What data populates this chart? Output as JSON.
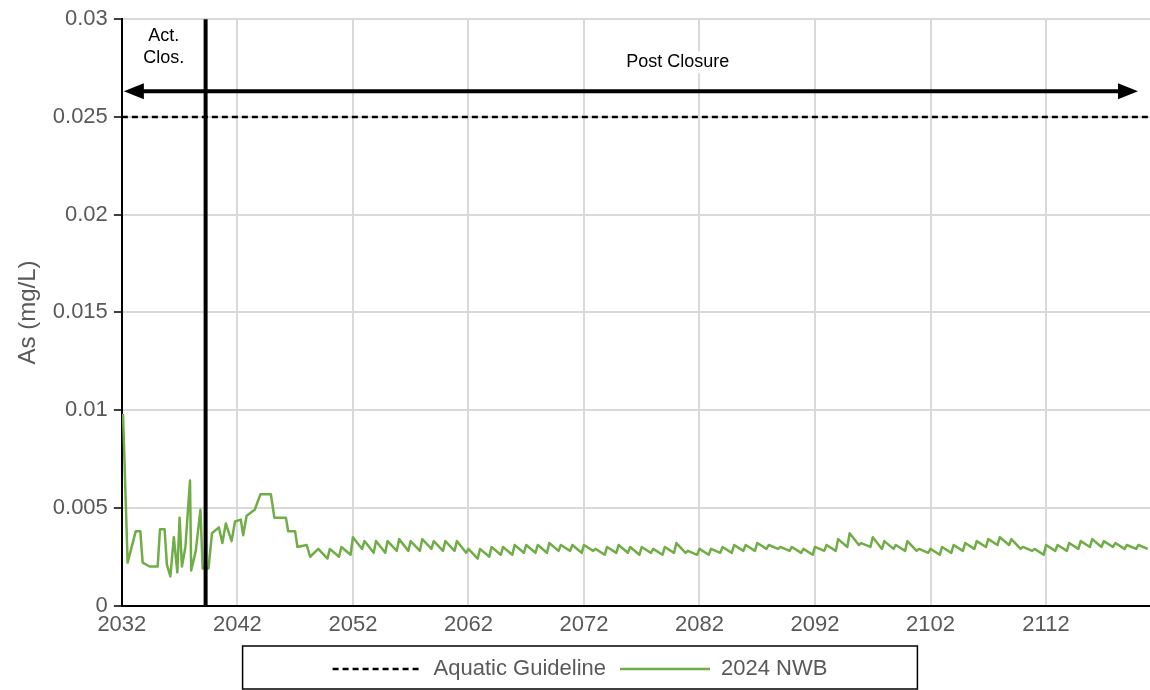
{
  "chart_data": {
    "type": "line",
    "ylabel": "As (mg/L)",
    "xlim": [
      2032,
      2121
    ],
    "xticks": [
      2032,
      2042,
      2052,
      2062,
      2072,
      2082,
      2092,
      2102,
      2112
    ],
    "ylim": [
      0,
      0.03
    ],
    "yticks": [
      0,
      0.005,
      0.01,
      0.015,
      0.02,
      0.025,
      0.03
    ],
    "grid": true,
    "legend": "bottom",
    "marker": "none",
    "ref_lines": [
      {
        "axis": "x",
        "value": 2039.25,
        "color": "#000000"
      }
    ],
    "annotations": [
      "Act. Clos.",
      "Post Closure"
    ],
    "series": [
      {
        "name": "Aquatic Guideline",
        "color": "#000000",
        "line_style": "dashed",
        "x": [
          2032,
          2121
        ],
        "values": [
          0.025,
          0.025
        ]
      },
      {
        "name": "2024 NWB",
        "color": "#70ad47",
        "line_style": "solid",
        "x": [
          2032.1,
          2032.5,
          2033.2,
          2033.6,
          2033.8,
          2034.4,
          2035.1,
          2035.3,
          2035.7,
          2035.9,
          2036.2,
          2036.5,
          2036.8,
          2037.0,
          2037.2,
          2037.5,
          2037.9,
          2038.0,
          2038.4,
          2038.8,
          2039.0,
          2039.5,
          2039.8,
          2040.4,
          2040.7,
          2041.0,
          2041.5,
          2041.8,
          2042.3,
          2042.5,
          2042.8,
          2043.5,
          2044.0,
          2044.9,
          2045.2,
          2046.2,
          2046.4,
          2047.0,
          2047.2,
          2048.0,
          2048.3,
          2049,
          2049.8,
          2050,
          2050.8,
          2051,
          2051.8,
          2052,
          2052.8,
          2053,
          2053.8,
          2054,
          2054.8,
          2055,
          2055.8,
          2056,
          2056.8,
          2057,
          2057.8,
          2058,
          2058.8,
          2059,
          2059.8,
          2060,
          2060.8,
          2061,
          2061.8,
          2062,
          2062.8,
          2063,
          2063.8,
          2064,
          2064.8,
          2065,
          2065.8,
          2066,
          2066.8,
          2067,
          2067.8,
          2068,
          2068.8,
          2069,
          2069.8,
          2070,
          2070.8,
          2071,
          2071.8,
          2072,
          2072.8,
          2073,
          2073.8,
          2074,
          2074.8,
          2075,
          2075.8,
          2076,
          2076.8,
          2077,
          2077.8,
          2078,
          2078.8,
          2079,
          2079.8,
          2080,
          2080.8,
          2081,
          2081.8,
          2082,
          2082.8,
          2083,
          2083.8,
          2084,
          2084.8,
          2085,
          2085.8,
          2086,
          2086.8,
          2087,
          2087.8,
          2088,
          2088.8,
          2089,
          2089.8,
          2090,
          2090.8,
          2091,
          2091.8,
          2092,
          2092.8,
          2093,
          2093.8,
          2094,
          2094.8,
          2095,
          2095.8,
          2096,
          2096.8,
          2097,
          2097.8,
          2098,
          2098.8,
          2099,
          2099.8,
          2100,
          2100.8,
          2101,
          2101.8,
          2102,
          2102.8,
          2103,
          2103.8,
          2104,
          2104.8,
          2105,
          2105.8,
          2106,
          2106.8,
          2107,
          2107.8,
          2108,
          2108.8,
          2109,
          2109.8,
          2110,
          2110.8,
          2111,
          2111.8,
          2112,
          2112.8,
          2113,
          2113.8,
          2114,
          2114.8,
          2115,
          2115.8,
          2116,
          2116.8,
          2117,
          2117.8,
          2118,
          2118.8,
          2119,
          2119.8,
          2120,
          2120.8
        ],
        "values": [
          0.0098,
          0.0022,
          0.0038,
          0.0038,
          0.0022,
          0.002,
          0.002,
          0.0039,
          0.0039,
          0.0021,
          0.0015,
          0.0035,
          0.0017,
          0.0045,
          0.002,
          0.003,
          0.0064,
          0.0018,
          0.0028,
          0.0049,
          0.0019,
          0.0019,
          0.0037,
          0.004,
          0.0032,
          0.0042,
          0.0033,
          0.0043,
          0.0044,
          0.0036,
          0.0046,
          0.0049,
          0.0057,
          0.0057,
          0.0045,
          0.0045,
          0.0038,
          0.0038,
          0.003,
          0.0031,
          0.0025,
          0.0029,
          0.0024,
          0.0029,
          0.0025,
          0.003,
          0.0026,
          0.0035,
          0.0029,
          0.0033,
          0.0027,
          0.0033,
          0.0027,
          0.0033,
          0.0028,
          0.0034,
          0.0028,
          0.0033,
          0.0028,
          0.0034,
          0.0029,
          0.0033,
          0.0028,
          0.0033,
          0.0028,
          0.0033,
          0.0027,
          0.0029,
          0.0024,
          0.0029,
          0.0025,
          0.003,
          0.0026,
          0.003,
          0.0026,
          0.0031,
          0.0027,
          0.0031,
          0.0027,
          0.0031,
          0.0027,
          0.0032,
          0.0028,
          0.0031,
          0.0028,
          0.0031,
          0.0027,
          0.0031,
          0.0028,
          0.0029,
          0.0026,
          0.003,
          0.0027,
          0.0031,
          0.0027,
          0.003,
          0.0026,
          0.003,
          0.0027,
          0.0029,
          0.0026,
          0.003,
          0.0027,
          0.0032,
          0.0027,
          0.0028,
          0.0026,
          0.0029,
          0.0026,
          0.0029,
          0.0027,
          0.003,
          0.0027,
          0.0031,
          0.0028,
          0.0031,
          0.0028,
          0.0032,
          0.0029,
          0.0031,
          0.0029,
          0.003,
          0.0028,
          0.003,
          0.0027,
          0.0029,
          0.0026,
          0.003,
          0.0028,
          0.0031,
          0.0028,
          0.0034,
          0.003,
          0.0037,
          0.0031,
          0.0032,
          0.003,
          0.0035,
          0.0029,
          0.0033,
          0.0029,
          0.0031,
          0.0028,
          0.0033,
          0.0028,
          0.0029,
          0.0027,
          0.0029,
          0.0026,
          0.003,
          0.0027,
          0.0031,
          0.0028,
          0.0032,
          0.0029,
          0.0033,
          0.003,
          0.0034,
          0.0031,
          0.0035,
          0.0031,
          0.0034,
          0.0029,
          0.003,
          0.0028,
          0.0029,
          0.0026,
          0.0031,
          0.0028,
          0.0031,
          0.0028,
          0.0032,
          0.0029,
          0.0033,
          0.003,
          0.0034,
          0.003,
          0.0033,
          0.003,
          0.0032,
          0.0029,
          0.0031,
          0.0029,
          0.0031,
          0.0029
        ]
      }
    ]
  }
}
